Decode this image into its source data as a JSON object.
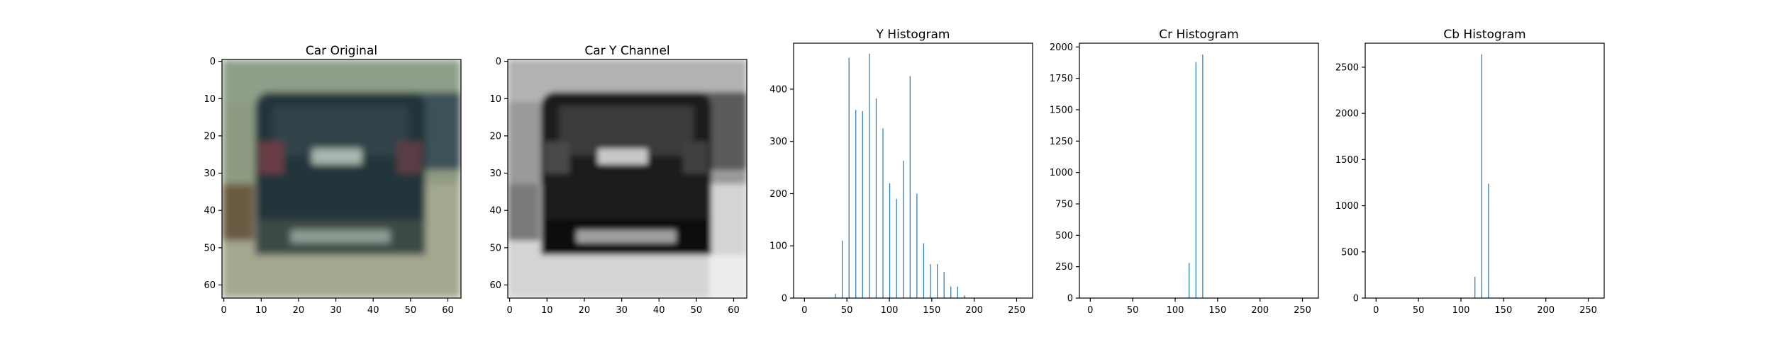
{
  "figure": {
    "panels": [
      {
        "kind": "image",
        "title": "Car Original",
        "xticks": [
          0,
          10,
          20,
          30,
          40,
          50,
          60
        ],
        "yticks": [
          0,
          10,
          20,
          30,
          40,
          50,
          60
        ],
        "extent": [
          -0.5,
          63.5
        ],
        "image_description_colors": {
          "background": "#8e9b82",
          "car_body": "#24343a",
          "window": "#33434a",
          "plate": "#a9b8b0",
          "road": "#a4a88f",
          "shadow": "#3c4a47",
          "taillight": "#6a3c44"
        }
      },
      {
        "kind": "image",
        "title": "Car Y Channel",
        "xticks": [
          0,
          10,
          20,
          30,
          40,
          50,
          60
        ],
        "yticks": [
          0,
          10,
          20,
          30,
          40,
          50,
          60
        ],
        "extent": [
          -0.5,
          63.5
        ],
        "image_description_colors": {
          "background": "#9a9a9a",
          "car_body": "#1e1e1e",
          "window": "#3a3a3a",
          "plate": "#c8c8c8",
          "road": "#d4d4d4",
          "shadow": "#111111"
        }
      },
      {
        "kind": "histogram",
        "title": "Y Histogram",
        "xticks": [
          0,
          50,
          100,
          150,
          200,
          250
        ],
        "yticks": [
          0,
          100,
          200,
          300,
          400
        ],
        "xlim": [
          -12.8,
          268.8
        ],
        "ylim": [
          0,
          488
        ]
      },
      {
        "kind": "histogram",
        "title": "Cr Histogram",
        "xticks": [
          0,
          50,
          100,
          150,
          200,
          250
        ],
        "yticks": [
          0,
          250,
          500,
          750,
          1000,
          1250,
          1500,
          1750,
          2000
        ],
        "xlim": [
          -12.8,
          268.8
        ],
        "ylim": [
          0,
          2030
        ]
      },
      {
        "kind": "histogram",
        "title": "Cb Histogram",
        "xticks": [
          0,
          50,
          100,
          150,
          200,
          250
        ],
        "yticks": [
          0,
          500,
          1000,
          1500,
          2000,
          2500
        ],
        "xlim": [
          -12.8,
          268.8
        ],
        "ylim": [
          0,
          2760
        ]
      }
    ]
  },
  "chart_data": [
    {
      "type": "image",
      "title": "Car Original",
      "xlim": [
        0,
        63
      ],
      "ylim": [
        63,
        0
      ]
    },
    {
      "type": "image",
      "title": "Car Y Channel",
      "xlim": [
        0,
        63
      ],
      "ylim": [
        63,
        0
      ]
    },
    {
      "type": "bar",
      "title": "Y Histogram",
      "bin_width": 1.0,
      "x": [
        36,
        44,
        52,
        60,
        68,
        76,
        84,
        92,
        100,
        108,
        116,
        124,
        132,
        140,
        148,
        156,
        164,
        172,
        180,
        188
      ],
      "values": [
        8,
        110,
        460,
        360,
        358,
        468,
        382,
        325,
        220,
        190,
        263,
        425,
        200,
        105,
        65,
        65,
        50,
        22,
        22,
        5
      ],
      "xlim": [
        0,
        256
      ],
      "ylim": [
        0,
        488
      ],
      "color": "#1f77b4"
    },
    {
      "type": "bar",
      "title": "Cr Histogram",
      "bin_width": 1.0,
      "x": [
        116,
        124,
        132
      ],
      "values": [
        280,
        1880,
        1940
      ],
      "xlim": [
        0,
        256
      ],
      "ylim": [
        0,
        2030
      ],
      "color": "#1f77b4"
    },
    {
      "type": "bar",
      "title": "Cb Histogram",
      "bin_width": 1.0,
      "x": [
        116,
        124,
        132
      ],
      "values": [
        230,
        2640,
        1240
      ],
      "xlim": [
        0,
        256
      ],
      "ylim": [
        0,
        2760
      ],
      "color": "#1f77b4"
    }
  ]
}
